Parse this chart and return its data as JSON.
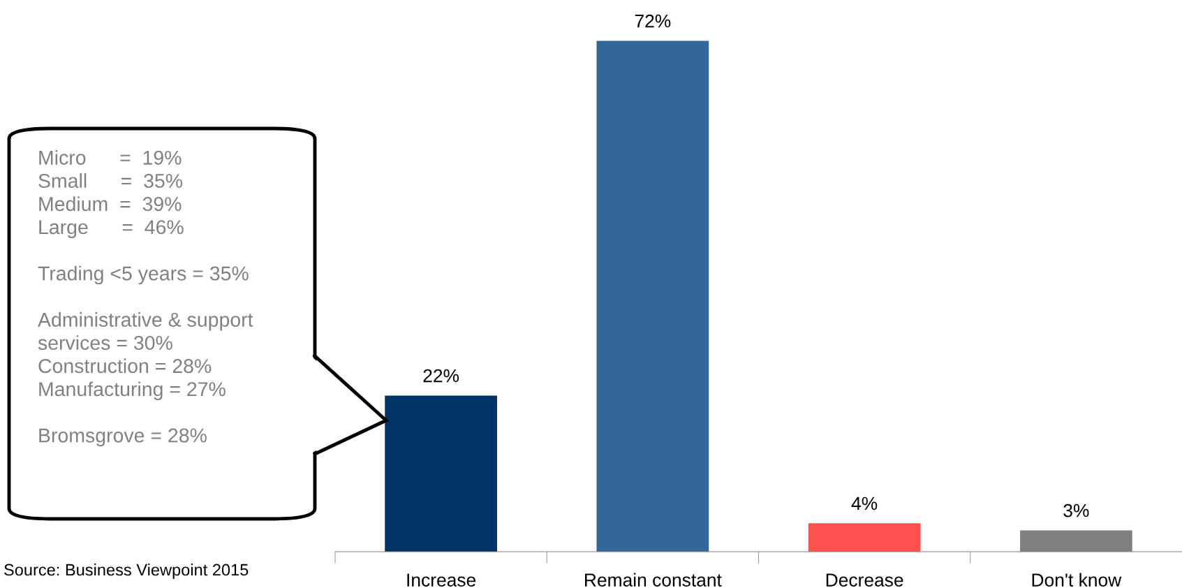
{
  "chart_data": {
    "type": "bar",
    "categories": [
      "Increase",
      "Remain constant",
      "Decrease",
      "Don't know"
    ],
    "values": [
      22,
      72,
      4,
      3
    ],
    "colors": [
      "#003366",
      "#336699",
      "#ff5050",
      "#808080"
    ],
    "value_labels": [
      "22%",
      "72%",
      "4%",
      "3%"
    ],
    "tick_labels": "x",
    "annotations": [
      "Micro      =  19%\nSmall      =  35%\nMedium  =  39%\nLarge      =  46%\n\nTrading <5 years = 35%\n\nAdministrative & support\nservices = 30%\nConstruction = 28%\nManufacturing = 27%\n\nBromsgrove = 28%",
      "Source: Business Viewpoint 2015"
    ]
  }
}
